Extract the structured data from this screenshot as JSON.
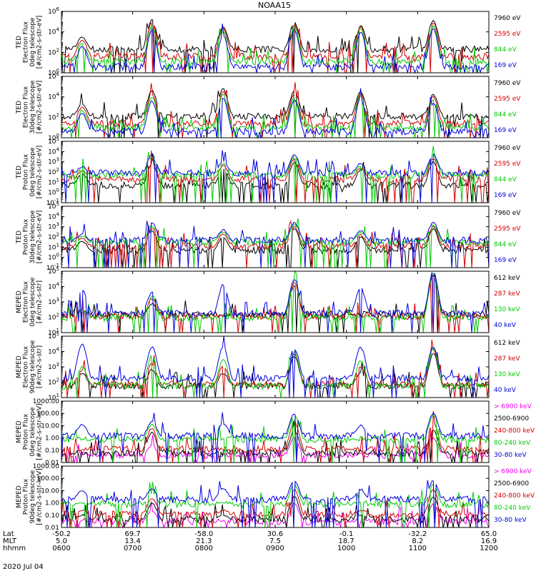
{
  "chart_data": {
    "type": "line",
    "title": "NOAA15",
    "date": "2020 Jul 04",
    "x_rows": [
      {
        "label": "Lat",
        "values": [
          "-50.2",
          "69.7",
          "-58.0",
          "30.6",
          "-0.1",
          "-32.2",
          "65.0"
        ]
      },
      {
        "label": "MLT",
        "values": [
          "5.0",
          "13.4",
          "21.3",
          "7.5",
          "18.7",
          "8.2",
          "16.9"
        ]
      },
      {
        "label": "hhmm",
        "values": [
          "0600",
          "0700",
          "0800",
          "0900",
          "1000",
          "1100",
          "1200"
        ]
      }
    ],
    "x_range_hhmm": [
      "0600",
      "1200"
    ],
    "time_hours": [
      6,
      7,
      8,
      9,
      10,
      11,
      12
    ],
    "pass_centers_hours": [
      6.29,
      7.27,
      8.27,
      9.27,
      10.2,
      11.22
    ],
    "panels": [
      {
        "ylabel": [
          "TED",
          "Electron Flux",
          "0deg telescope",
          "[#/cm2-s-str-eV]"
        ],
        "scale": "log",
        "ylim": [
          0,
          6
        ],
        "tick_labels": [
          "10^0",
          "10^2",
          "10^4",
          "10^6"
        ],
        "tick_exponents": [
          0,
          2,
          4,
          6
        ],
        "legend": [
          {
            "label": "7960 eV",
            "color": "#000000"
          },
          {
            "label": "2595 eV",
            "color": "#d00000"
          },
          {
            "label": "844 eV",
            "color": "#00cc00"
          },
          {
            "label": "169 eV",
            "color": "#0000dd"
          }
        ],
        "background_exp": [
          2.2,
          1.5,
          1.0,
          0.5
        ],
        "peak_exp": [
          [
            3.5,
            5.2,
            4.5,
            4.9,
            4.6,
            5.1
          ],
          [
            3.2,
            5.0,
            4.3,
            4.7,
            4.5,
            4.9
          ],
          [
            2.9,
            4.6,
            4.0,
            4.5,
            4.3,
            4.6
          ],
          [
            2.6,
            4.2,
            3.7,
            4.2,
            4.0,
            4.3
          ]
        ]
      },
      {
        "ylabel": [
          "TED",
          "Electron Flux",
          "30deg telescope",
          "[#/cm2-s-str-eV]"
        ],
        "scale": "log",
        "ylim": [
          0,
          6
        ],
        "tick_labels": [
          "10^0",
          "10^2",
          "10^4",
          "10^6"
        ],
        "tick_exponents": [
          0,
          2,
          4,
          6
        ],
        "legend": [
          {
            "label": "7960 eV",
            "color": "#000000"
          },
          {
            "label": "2595 eV",
            "color": "#d00000"
          },
          {
            "label": "844 eV",
            "color": "#00cc00"
          },
          {
            "label": "169 eV",
            "color": "#0000dd"
          }
        ],
        "background_exp": [
          2.0,
          1.3,
          0.9,
          0.5
        ],
        "peak_exp": [
          [
            3.3,
            4.6,
            4.8,
            4.6,
            4.5,
            4.2
          ],
          [
            3.0,
            4.3,
            4.5,
            4.3,
            4.3,
            4.0
          ],
          [
            2.7,
            4.0,
            4.2,
            4.0,
            4.1,
            3.7
          ],
          [
            2.4,
            3.6,
            3.8,
            3.7,
            3.8,
            3.4
          ]
        ]
      },
      {
        "ylabel": [
          "TED",
          "Proton Flux",
          "0deg telescope",
          "[#/cm2-s-str-eV]"
        ],
        "scale": "log",
        "ylim": [
          -1,
          5
        ],
        "tick_labels": [
          "10^-1",
          "10^0",
          "10^1",
          "10^2",
          "10^3",
          "10^4",
          "10^5"
        ],
        "tick_exponents": [
          -1,
          0,
          1,
          2,
          3,
          4,
          5
        ],
        "legend": [
          {
            "label": "7960 eV",
            "color": "#000000"
          },
          {
            "label": "2595 eV",
            "color": "#d00000"
          },
          {
            "label": "844 eV",
            "color": "#00cc00"
          },
          {
            "label": "169 eV",
            "color": "#0000dd"
          }
        ],
        "background_exp": [
          0.6,
          1.2,
          1.6,
          1.8
        ],
        "peak_exp": [
          [
            1.8,
            2.8,
            2.3,
            3.0,
            2.2,
            3.0
          ],
          [
            2.1,
            3.1,
            2.6,
            3.3,
            2.4,
            3.3
          ],
          [
            2.3,
            3.4,
            2.8,
            3.5,
            2.6,
            3.5
          ],
          [
            2.5,
            3.7,
            3.0,
            3.7,
            2.8,
            3.7
          ]
        ]
      },
      {
        "ylabel": [
          "TED",
          "Proton Flux",
          "30deg telescope",
          "[#/cm2-s-str-eV]"
        ],
        "scale": "log",
        "ylim": [
          -1,
          5
        ],
        "tick_labels": [
          "10^-1",
          "10^0",
          "10^1",
          "10^2",
          "10^3",
          "10^4",
          "10^5"
        ],
        "tick_exponents": [
          -1,
          0,
          1,
          2,
          3,
          4,
          5
        ],
        "legend": [
          {
            "label": "7960 eV",
            "color": "#000000"
          },
          {
            "label": "2595 eV",
            "color": "#d00000"
          },
          {
            "label": "844 eV",
            "color": "#00cc00"
          },
          {
            "label": "169 eV",
            "color": "#0000dd"
          }
        ],
        "background_exp": [
          0.6,
          1.0,
          1.4,
          1.6
        ],
        "peak_exp": [
          [
            1.6,
            2.6,
            2.0,
            2.8,
            2.0,
            2.8
          ],
          [
            1.9,
            2.9,
            2.3,
            3.0,
            2.2,
            3.0
          ],
          [
            2.1,
            3.1,
            2.5,
            3.2,
            2.4,
            3.2
          ],
          [
            2.3,
            3.4,
            2.7,
            3.4,
            2.6,
            3.4
          ]
        ]
      },
      {
        "ylabel": [
          "MEPED",
          "Electron Flux",
          "0deg telescope",
          "[#/cm2-s-str]"
        ],
        "scale": "log",
        "ylim": [
          1,
          5
        ],
        "tick_labels": [
          "10^1",
          "10^2",
          "10^3",
          "10^4",
          "10^5"
        ],
        "tick_exponents": [
          1,
          2,
          3,
          4,
          5
        ],
        "legend": [
          {
            "label": "612 keV",
            "color": "#000000"
          },
          {
            "label": "287 keV",
            "color": "#d00000"
          },
          {
            "label": "130 keV",
            "color": "#00cc00"
          },
          {
            "label": "40 keV",
            "color": "#0000dd"
          }
        ],
        "background_exp": [
          2.1,
          2.0,
          1.9,
          2.2
        ],
        "peak_exp": [
          [
            2.4,
            2.9,
            2.0,
            4.1,
            2.0,
            4.7
          ],
          [
            2.5,
            3.2,
            2.0,
            4.3,
            2.0,
            4.8
          ],
          [
            2.5,
            3.4,
            2.0,
            4.4,
            2.0,
            4.9
          ],
          [
            3.8,
            3.6,
            4.1,
            4.5,
            3.9,
            5.0
          ]
        ]
      },
      {
        "ylabel": [
          "MEPED",
          "Electron Flux",
          "90deg telescope",
          "[#/cm2-s-str]"
        ],
        "scale": "log",
        "ylim": [
          1,
          5
        ],
        "tick_labels": [
          "10^1",
          "10^2",
          "10^3",
          "10^4",
          "10^5"
        ],
        "tick_exponents": [
          1,
          2,
          3,
          4,
          5
        ],
        "legend": [
          {
            "label": "612 keV",
            "color": "#000000"
          },
          {
            "label": "287 keV",
            "color": "#d00000"
          },
          {
            "label": "130 keV",
            "color": "#00cc00"
          },
          {
            "label": "40 keV",
            "color": "#0000dd"
          }
        ],
        "background_exp": [
          1.7,
          1.8,
          1.7,
          2.2
        ],
        "peak_exp": [
          [
            2.6,
            2.8,
            2.6,
            3.7,
            2.6,
            3.9
          ],
          [
            2.8,
            3.2,
            3.0,
            3.9,
            3.0,
            4.1
          ],
          [
            3.0,
            3.8,
            3.5,
            4.0,
            3.4,
            4.2
          ],
          [
            4.5,
            4.3,
            4.3,
            4.2,
            4.3,
            4.3
          ]
        ]
      },
      {
        "ylabel": [
          "MEPED",
          "Proton Flux",
          "0deg telescope",
          "[#/cm2-s-str-keV]"
        ],
        "scale": "log",
        "ylim": [
          -2,
          3
        ],
        "tick_labels": [
          "0.01",
          "0.10",
          "1.00",
          "10.00",
          "100.00",
          "1000.00"
        ],
        "tick_exponents": [
          -2,
          -1,
          0,
          1,
          2,
          3
        ],
        "legend": [
          {
            "label": "> 6900 keV",
            "color": "#ee00ee"
          },
          {
            "label": "2500-6900",
            "color": "#000000"
          },
          {
            "label": "240-800 keV",
            "color": "#d00000"
          },
          {
            "label": "80-240 keV",
            "color": "#00cc00"
          },
          {
            "label": "30-80 keV",
            "color": "#0000dd"
          }
        ],
        "background_exp": [
          -1.5,
          -1.3,
          -1.0,
          -0.2,
          0.1
        ],
        "peak_exp": [
          [
            -1.5,
            -0.6,
            -1.5,
            0.0,
            -1.5,
            0.0
          ],
          [
            -1.5,
            0.4,
            -1.5,
            0.6,
            -1.5,
            0.6
          ],
          [
            -1.0,
            0.8,
            -1.0,
            1.3,
            -1.0,
            1.3
          ],
          [
            -0.2,
            1.1,
            -0.2,
            1.8,
            -0.2,
            1.8
          ],
          [
            1.1,
            1.3,
            1.2,
            2.0,
            1.0,
            2.0
          ]
        ]
      },
      {
        "ylabel": [
          "MEPED",
          "Proton Flux",
          "90deg telescope",
          "[#/cm2-s-str-keV]"
        ],
        "scale": "log",
        "ylim": [
          -2,
          3
        ],
        "tick_labels": [
          "0.01",
          "0.10",
          "1.00",
          "10.00",
          "100.00",
          "1000.00"
        ],
        "tick_exponents": [
          -2,
          -1,
          0,
          1,
          2,
          3
        ],
        "legend": [
          {
            "label": "> 6900 keV",
            "color": "#ee00ee"
          },
          {
            "label": "2500-6900",
            "color": "#000000"
          },
          {
            "label": "240-800 keV",
            "color": "#d00000"
          },
          {
            "label": "80-240 keV",
            "color": "#00cc00"
          },
          {
            "label": "30-80 keV",
            "color": "#0000dd"
          }
        ],
        "background_exp": [
          -1.6,
          -1.4,
          -1.0,
          -0.2,
          0.2
        ],
        "peak_exp": [
          [
            -1.5,
            -0.7,
            -1.5,
            -0.1,
            -1.5,
            -0.1
          ],
          [
            -1.0,
            0.0,
            -1.0,
            0.5,
            -1.0,
            0.5
          ],
          [
            -0.6,
            0.4,
            -0.6,
            1.1,
            -0.6,
            1.1
          ],
          [
            0.0,
            0.8,
            0.0,
            1.5,
            0.0,
            1.5
          ],
          [
            1.0,
            1.1,
            1.2,
            1.8,
            1.1,
            1.8
          ]
        ]
      }
    ]
  }
}
